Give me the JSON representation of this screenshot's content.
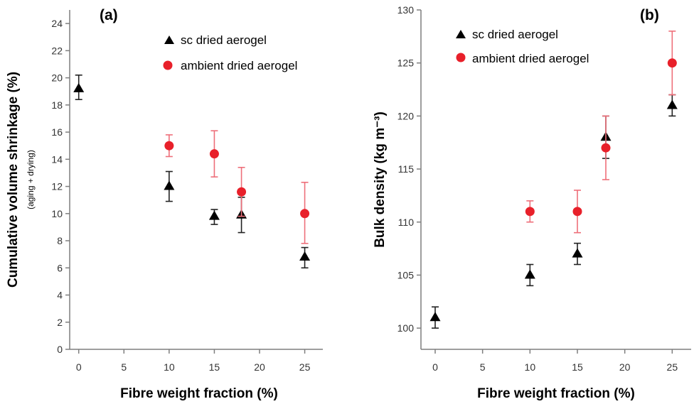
{
  "colors": {
    "axis": "#7f7f7f",
    "sc_marker": "#000000",
    "sc_errorbar": "#222222",
    "ambient_marker": "#e8202a",
    "ambient_errorbar": "#ee6f7a"
  },
  "chart_data": [
    {
      "type": "scatter",
      "panel_label": "(a)",
      "xlabel": "Fibre weight fraction (%)",
      "ylabel": "Cumulative volume shrinkage (%)",
      "ylabel_sub": "(aging + drying)",
      "xlim": [
        -1,
        27
      ],
      "ylim": [
        0,
        25
      ],
      "xticks": [
        0,
        5,
        10,
        15,
        20,
        25
      ],
      "yticks": [
        0,
        2,
        4,
        6,
        8,
        10,
        12,
        14,
        16,
        18,
        20,
        22,
        24
      ],
      "legend_position": "top-right",
      "series": [
        {
          "name": "sc dried aerogel",
          "marker": "triangle",
          "x": [
            0,
            10,
            15,
            18,
            25
          ],
          "y": [
            19.2,
            12.0,
            9.8,
            9.9,
            6.8
          ],
          "err_low": [
            18.4,
            10.9,
            9.2,
            8.6,
            6.0
          ],
          "err_high": [
            20.2,
            13.1,
            10.3,
            11.2,
            7.5
          ]
        },
        {
          "name": "ambient dried aerogel",
          "marker": "circle",
          "x": [
            10,
            15,
            18,
            25
          ],
          "y": [
            15.0,
            14.4,
            11.6,
            10.0
          ],
          "err_low": [
            14.2,
            12.7,
            9.8,
            7.8
          ],
          "err_high": [
            15.8,
            16.1,
            13.4,
            12.3
          ]
        }
      ]
    },
    {
      "type": "scatter",
      "panel_label": "(b)",
      "xlabel": "Fibre weight fraction (%)",
      "ylabel": "Bulk density (kg m⁻³)",
      "xlim": [
        -1.5,
        27
      ],
      "ylim": [
        98,
        130
      ],
      "xticks": [
        0,
        5,
        10,
        15,
        20,
        25
      ],
      "yticks": [
        100,
        105,
        110,
        115,
        120,
        125,
        130
      ],
      "legend_position": "top-right",
      "series": [
        {
          "name": "sc dried aerogel",
          "marker": "triangle",
          "x": [
            0,
            10,
            15,
            18,
            25
          ],
          "y": [
            101,
            105,
            107,
            118,
            121
          ],
          "err_low": [
            100,
            104,
            106,
            116,
            120
          ],
          "err_high": [
            102,
            106,
            108,
            120,
            122
          ]
        },
        {
          "name": "ambient dried aerogel",
          "marker": "circle",
          "x": [
            10,
            15,
            18,
            25
          ],
          "y": [
            111,
            111,
            117,
            125
          ],
          "err_low": [
            110,
            109,
            114,
            122
          ],
          "err_high": [
            112,
            113,
            120,
            128
          ]
        }
      ]
    }
  ]
}
